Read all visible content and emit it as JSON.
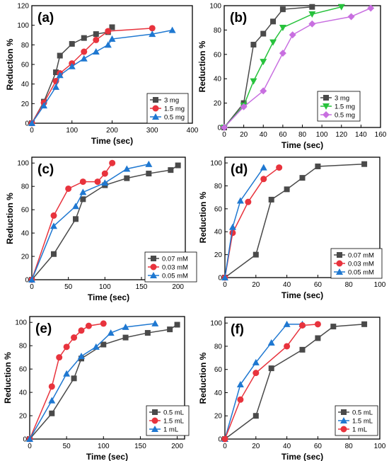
{
  "chart_data": [
    {
      "type": "line",
      "panel_label": "(a)",
      "xlabel": "Time (sec)",
      "ylabel": "Reduction %",
      "xlim": [
        0,
        400
      ],
      "ylim": [
        0,
        120
      ],
      "xticks": [
        0,
        100,
        200,
        300,
        400
      ],
      "yticks": [
        0,
        20,
        40,
        60,
        80,
        100,
        120
      ],
      "legend_position": "bottom-right",
      "series": [
        {
          "name": "3 mg",
          "color": "#4a4a4a",
          "marker": "square",
          "x": [
            0,
            30,
            60,
            70,
            100,
            130,
            160,
            190,
            200
          ],
          "y": [
            0,
            22,
            52,
            69,
            81,
            87,
            91,
            93,
            98
          ]
        },
        {
          "name": "1.5 mg",
          "color": "#e8333d",
          "marker": "circle",
          "x": [
            0,
            30,
            60,
            70,
            100,
            130,
            160,
            190,
            300
          ],
          "y": [
            0,
            21,
            43,
            51,
            61,
            73,
            85,
            94,
            97
          ]
        },
        {
          "name": "0.5 mg",
          "color": "#1f78d1",
          "marker": "triangle-up",
          "x": [
            0,
            30,
            60,
            70,
            100,
            130,
            160,
            190,
            200,
            300,
            350
          ],
          "y": [
            0,
            18,
            37,
            49,
            58,
            66,
            73,
            80,
            86,
            91,
            95
          ]
        }
      ]
    },
    {
      "type": "line",
      "panel_label": "(b)",
      "xlabel": "Time (sec)",
      "ylabel": "Reduction %",
      "xlim": [
        0,
        160
      ],
      "ylim": [
        0,
        100
      ],
      "xticks": [
        0,
        20,
        40,
        60,
        80,
        100,
        120,
        140,
        160
      ],
      "yticks": [
        0,
        20,
        40,
        60,
        80,
        100
      ],
      "legend_position": "bottom-right",
      "series": [
        {
          "name": "3 mg",
          "color": "#4a4a4a",
          "marker": "square",
          "x": [
            0,
            20,
            30,
            40,
            50,
            60,
            90
          ],
          "y": [
            0,
            20,
            68,
            77,
            87,
            97,
            99
          ]
        },
        {
          "name": "1.5 mg",
          "color": "#27c23c",
          "marker": "triangle-down",
          "x": [
            0,
            20,
            30,
            40,
            50,
            60,
            90,
            120
          ],
          "y": [
            0,
            18,
            38,
            54,
            70,
            82,
            93,
            99
          ]
        },
        {
          "name": "0.5 mg",
          "color": "#c86fe0",
          "marker": "diamond",
          "x": [
            0,
            20,
            40,
            60,
            70,
            90,
            130,
            150
          ],
          "y": [
            0,
            17,
            30,
            61,
            76,
            85,
            91,
            98
          ]
        }
      ]
    },
    {
      "type": "line",
      "panel_label": "(c)",
      "xlabel": "Time (sec)",
      "ylabel": "Reduction %",
      "xlim": [
        0,
        210
      ],
      "ylim": [
        0,
        105
      ],
      "xticks": [
        0,
        50,
        100,
        150,
        200
      ],
      "yticks": [
        0,
        20,
        40,
        60,
        80,
        100
      ],
      "legend_position": "bottom-right",
      "series": [
        {
          "name": "0.07 mM",
          "color": "#4a4a4a",
          "marker": "square",
          "x": [
            0,
            30,
            60,
            70,
            100,
            130,
            160,
            190,
            200
          ],
          "y": [
            0,
            22,
            52,
            69,
            81,
            87,
            91,
            94,
            98
          ]
        },
        {
          "name": "0.03 mM",
          "color": "#e8333d",
          "marker": "circle",
          "x": [
            0,
            30,
            50,
            70,
            90,
            100,
            110
          ],
          "y": [
            0,
            55,
            78,
            84,
            84,
            91,
            100
          ]
        },
        {
          "name": "0.05 mM",
          "color": "#1f78d1",
          "marker": "triangle-up",
          "x": [
            0,
            30,
            60,
            70,
            100,
            130,
            160
          ],
          "y": [
            0,
            46,
            63,
            75,
            83,
            95,
            99
          ]
        }
      ]
    },
    {
      "type": "line",
      "panel_label": "(d)",
      "xlabel": "Time (sec)",
      "ylabel": "Reduction %",
      "xlim": [
        0,
        100
      ],
      "ylim": [
        0,
        105
      ],
      "xticks": [
        0,
        20,
        40,
        60,
        80,
        100
      ],
      "yticks": [
        0,
        20,
        40,
        60,
        80,
        100
      ],
      "legend_position": "bottom-right",
      "series": [
        {
          "name": "0.07 mM",
          "color": "#4a4a4a",
          "marker": "square",
          "x": [
            0,
            20,
            30,
            40,
            50,
            60,
            90
          ],
          "y": [
            0,
            20,
            68,
            77,
            87,
            97,
            99
          ]
        },
        {
          "name": "0.03 mM",
          "color": "#e8333d",
          "marker": "circle",
          "x": [
            0,
            5,
            15,
            25,
            35
          ],
          "y": [
            0,
            39,
            66,
            86,
            96
          ]
        },
        {
          "name": "0.05 mM",
          "color": "#1f78d1",
          "marker": "triangle-up",
          "x": [
            0,
            5,
            10,
            25
          ],
          "y": [
            0,
            44,
            67,
            96
          ]
        }
      ]
    },
    {
      "type": "line",
      "panel_label": "(e)",
      "xlabel": "Time (sec)",
      "ylabel": "Reduction %",
      "xlim": [
        0,
        210
      ],
      "ylim": [
        0,
        105
      ],
      "xticks": [
        0,
        50,
        100,
        150,
        200
      ],
      "yticks": [
        0,
        20,
        40,
        60,
        80,
        100
      ],
      "legend_position": "bottom-right",
      "series": [
        {
          "name": "0.5 mL",
          "color": "#4a4a4a",
          "marker": "square",
          "x": [
            0,
            30,
            60,
            70,
            100,
            130,
            160,
            190,
            200
          ],
          "y": [
            0,
            22,
            52,
            69,
            81,
            87,
            91,
            94,
            98
          ]
        },
        {
          "name": "1.5 mL",
          "color": "#e8333d",
          "marker": "circle",
          "x": [
            0,
            30,
            40,
            50,
            60,
            70,
            80,
            100
          ],
          "y": [
            0,
            45,
            70,
            79,
            87,
            93,
            97,
            99
          ]
        },
        {
          "name": "1 mL",
          "color": "#1f78d1",
          "marker": "triangle-up",
          "x": [
            0,
            30,
            50,
            70,
            90,
            110,
            130,
            170
          ],
          "y": [
            0,
            33,
            56,
            71,
            79,
            91,
            96,
            99
          ]
        }
      ]
    },
    {
      "type": "line",
      "panel_label": "(f)",
      "xlabel": "Time (sec)",
      "ylabel": "Reduction %",
      "xlim": [
        0,
        100
      ],
      "ylim": [
        0,
        105
      ],
      "xticks": [
        0,
        20,
        40,
        60,
        80,
        100
      ],
      "yticks": [
        0,
        20,
        40,
        60,
        80,
        100
      ],
      "legend_position": "bottom-right",
      "series": [
        {
          "name": "0.5 mL",
          "color": "#4a4a4a",
          "marker": "square",
          "x": [
            0,
            20,
            30,
            50,
            60,
            70,
            90
          ],
          "y": [
            0,
            20,
            61,
            77,
            87,
            97,
            99
          ]
        },
        {
          "name": "1.5 mL",
          "color": "#1f78d1",
          "marker": "triangle-up",
          "x": [
            0,
            10,
            20,
            30,
            40,
            50
          ],
          "y": [
            0,
            47,
            66,
            83,
            99,
            99
          ]
        },
        {
          "name": "1 mL",
          "color": "#e8333d",
          "marker": "circle",
          "x": [
            0,
            10,
            20,
            40,
            50,
            60
          ],
          "y": [
            0,
            34,
            57,
            80,
            98,
            99
          ]
        }
      ]
    }
  ]
}
